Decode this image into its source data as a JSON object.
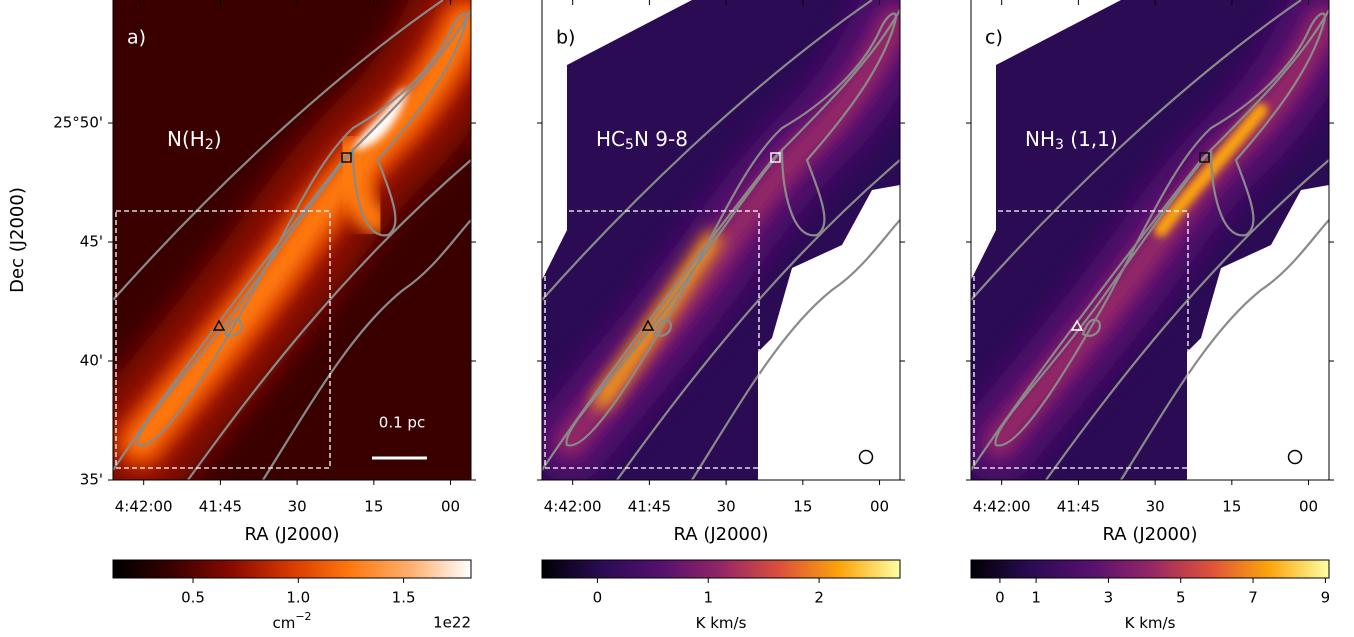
{
  "chart_data": [
    {
      "type": "image",
      "panel": "a)",
      "label": [
        "N(H",
        "2",
        ")"
      ],
      "scale_bar": "0.1 pc",
      "colormap": "gist_heat",
      "xlabel": "RA (J2000)",
      "ylabel": "Dec (J2000)",
      "xlim": [
        -6,
        64
      ],
      "xticks": [
        {
          "value": 0,
          "label": "4:42:00"
        },
        {
          "value": 15,
          "label": "41:45"
        },
        {
          "value": 30,
          "label": "30"
        },
        {
          "value": 45,
          "label": "15"
        },
        {
          "value": 60,
          "label": "00"
        }
      ],
      "ylim": [
        35,
        55.17
      ],
      "yticks": [
        {
          "value": 50,
          "label": "25°50'"
        },
        {
          "value": 45,
          "label": "45'"
        },
        {
          "value": 40,
          "label": "40'"
        },
        {
          "value": 35,
          "label": "35'"
        }
      ],
      "colorbar": {
        "clim": [
          0.12,
          1.82
        ],
        "ticks": [
          0.5,
          {
            "value": 1.0,
            "label": "1.0"
          },
          1.5
        ],
        "label": [
          "cm",
          "−2"
        ],
        "offset": "1e22"
      }
    },
    {
      "type": "image",
      "panel": "b)",
      "label": [
        "HC",
        "5",
        "N 9-8"
      ],
      "colormap": "inferno",
      "beam": true,
      "xlabel": "RA (J2000)",
      "xlim": [
        -6,
        64
      ],
      "xticks": [
        {
          "value": 0,
          "label": "4:42:00"
        },
        {
          "value": 15,
          "label": "41:45"
        },
        {
          "value": 30,
          "label": "30"
        },
        {
          "value": 45,
          "label": "15"
        },
        {
          "value": 60,
          "label": "00"
        }
      ],
      "ylim": [
        35,
        55.17
      ],
      "yticks": [
        50,
        45,
        40,
        35
      ],
      "colorbar": {
        "clim": [
          -0.5,
          2.73
        ],
        "ticks": [
          0,
          1,
          2
        ],
        "label": [
          "K km/s"
        ]
      }
    },
    {
      "type": "image",
      "panel": "c)",
      "label": [
        "NH",
        "3",
        " (1,1)"
      ],
      "colormap": "inferno",
      "beam": true,
      "xlabel": "RA (J2000)",
      "xlim": [
        -6,
        64
      ],
      "xticks": [
        {
          "value": 0,
          "label": "4:42:00"
        },
        {
          "value": 15,
          "label": "41:45"
        },
        {
          "value": 30,
          "label": "30"
        },
        {
          "value": 45,
          "label": "15"
        },
        {
          "value": 60,
          "label": "00"
        }
      ],
      "ylim": [
        35,
        55.17
      ],
      "yticks": [
        50,
        45,
        40,
        35
      ],
      "colorbar": {
        "clim": [
          -0.8,
          9.1
        ],
        "ticks": [
          0,
          1,
          3,
          5,
          7,
          9
        ],
        "label": [
          "K km/s"
        ]
      }
    }
  ]
}
